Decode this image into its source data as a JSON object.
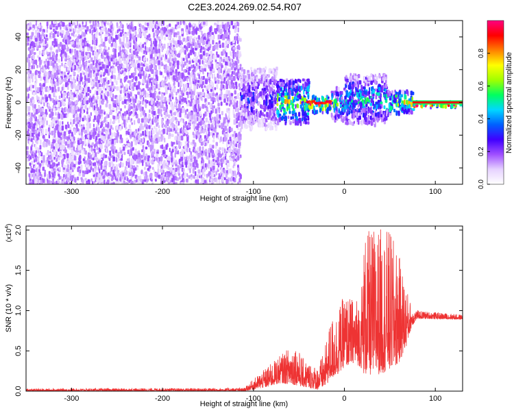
{
  "title": "C2E3.2024.269.02.54.R07",
  "chart_data": [
    {
      "type": "heatmap",
      "xlabel": "Height of straight line (km)",
      "ylabel": "Frequency (Hz)",
      "xlim": [
        -350,
        130
      ],
      "ylim": [
        -50,
        50
      ],
      "xticks": [
        -300,
        -200,
        -100,
        0,
        100
      ],
      "yticks": [
        -40,
        -20,
        0,
        20,
        40
      ],
      "colorbar": {
        "label": "Normalized spectral amplitude",
        "range": [
          0,
          1
        ],
        "ticks": [
          "0.0",
          "0.2",
          "0.4",
          "0.6",
          "0.8"
        ],
        "colors": [
          "#ffffff",
          "#e6d2ff",
          "#a050ff",
          "#4000ff",
          "#0060ff",
          "#00d8ff",
          "#00ff60",
          "#a0ff00",
          "#ffff00",
          "#ff8000",
          "#ff0000",
          "#ff0080"
        ]
      },
      "regions": [
        {
          "x": [
            -350,
            -115
          ],
          "level": 0.15,
          "band": [
            -50,
            50
          ]
        },
        {
          "x": [
            -115,
            -75
          ],
          "level": 0.25,
          "band": [
            -15,
            22
          ]
        },
        {
          "x": [
            -75,
            -40
          ],
          "level": 0.55,
          "band": [
            -12,
            15
          ]
        },
        {
          "x": [
            -40,
            -15
          ],
          "level": 0.85,
          "band": [
            -5,
            5
          ]
        },
        {
          "x": [
            -15,
            0
          ],
          "level": 0.45,
          "band": [
            -10,
            10
          ]
        },
        {
          "x": [
            0,
            45
          ],
          "level": 0.4,
          "band": [
            -12,
            18
          ]
        },
        {
          "x": [
            45,
            75
          ],
          "level": 0.6,
          "band": [
            -6,
            8
          ]
        },
        {
          "x": [
            75,
            130
          ],
          "level": 0.95,
          "band": [
            -1.5,
            1.5
          ]
        }
      ]
    },
    {
      "type": "line",
      "xlabel": "Height of straight line (km)",
      "ylabel": "SNR (10 * v/v)",
      "yscale_label": "(x10",
      "yscale_exp": "4",
      "yscale_close": ")",
      "xlim": [
        -350,
        130
      ],
      "ylim": [
        0,
        2.05
      ],
      "xticks": [
        -300,
        -200,
        -100,
        0,
        100
      ],
      "yticks": [
        "0.0",
        "0.5",
        "1.0",
        "1.5",
        "2.0"
      ],
      "color": "#ee3333",
      "envelope": [
        {
          "x": -350,
          "base": 0.0,
          "peak": 0.03
        },
        {
          "x": -110,
          "base": 0.0,
          "peak": 0.04
        },
        {
          "x": -100,
          "base": 0.02,
          "peak": 0.15
        },
        {
          "x": -85,
          "base": 0.05,
          "peak": 0.3
        },
        {
          "x": -70,
          "base": 0.1,
          "peak": 0.45
        },
        {
          "x": -55,
          "base": 0.08,
          "peak": 0.6
        },
        {
          "x": -45,
          "base": 0.05,
          "peak": 0.4
        },
        {
          "x": -30,
          "base": 0.02,
          "peak": 0.3
        },
        {
          "x": -22,
          "base": 0.05,
          "peak": 0.5
        },
        {
          "x": -15,
          "base": 0.15,
          "peak": 0.9
        },
        {
          "x": -8,
          "base": 0.2,
          "peak": 1.0
        },
        {
          "x": 0,
          "base": 0.3,
          "peak": 1.2
        },
        {
          "x": 10,
          "base": 0.35,
          "peak": 1.15
        },
        {
          "x": 18,
          "base": 0.3,
          "peak": 1.2
        },
        {
          "x": 22,
          "base": 0.2,
          "peak": 1.95
        },
        {
          "x": 35,
          "base": 0.2,
          "peak": 2.05
        },
        {
          "x": 50,
          "base": 0.25,
          "peak": 2.0
        },
        {
          "x": 60,
          "base": 0.35,
          "peak": 1.7
        },
        {
          "x": 68,
          "base": 0.55,
          "peak": 1.3
        },
        {
          "x": 74,
          "base": 0.8,
          "peak": 1.05
        },
        {
          "x": 80,
          "base": 0.9,
          "peak": 1.0
        },
        {
          "x": 130,
          "base": 0.89,
          "peak": 0.95
        }
      ]
    }
  ]
}
